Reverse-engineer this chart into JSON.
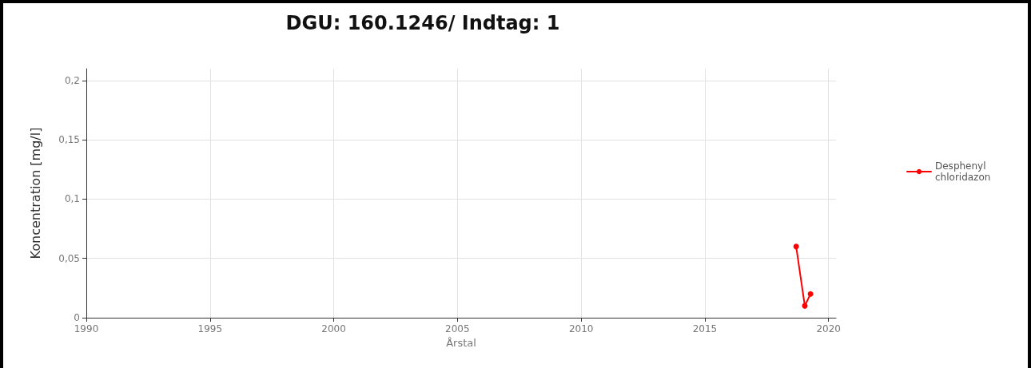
{
  "chart_data": {
    "type": "line",
    "title": "DGU: 160.1246/ Indtag: 1",
    "xlabel": "Årstal",
    "ylabel": "Koncentration [mg/l]",
    "series": [
      {
        "name": "Desphenyl\nchloridazon",
        "color": "#ff0000",
        "x": [
          2018.69,
          2019.04,
          2019.27
        ],
        "values": [
          0.06,
          0.01,
          0.02
        ]
      }
    ],
    "xlim": [
      1990,
      2020.3
    ],
    "xticks": [
      1990,
      1995,
      2000,
      2005,
      2010,
      2015,
      2020
    ],
    "ylim": [
      0,
      0.21
    ],
    "yticks": [
      {
        "value": 0,
        "label": "0"
      },
      {
        "value": 0.05,
        "label": "0,05"
      },
      {
        "value": 0.1,
        "label": "0,1"
      },
      {
        "value": 0.15,
        "label": "0,15"
      },
      {
        "value": 0.2,
        "label": "0,2"
      }
    ],
    "grid": true,
    "legend": "right",
    "marker": "circle",
    "line_style": "solid"
  }
}
